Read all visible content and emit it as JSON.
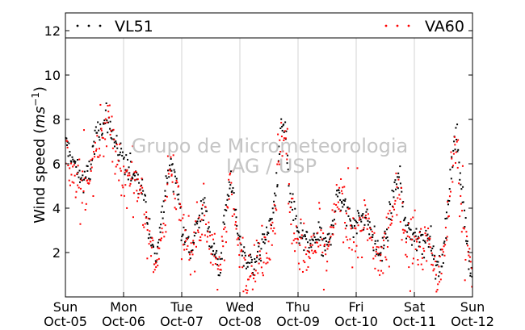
{
  "chart_data": {
    "type": "scatter",
    "title": "",
    "ylabel_main": "Wind speed (",
    "ylabel_unit": "ms",
    "ylabel_exp": "−1",
    "ylabel_close": ")",
    "xlabel": "",
    "ylim": [
      0,
      12.8
    ],
    "xlim": [
      0,
      7
    ],
    "yticks": [
      2,
      4,
      6,
      8,
      10,
      12
    ],
    "ytick_labels": [
      "2",
      "4",
      "6",
      "8",
      "10",
      "12"
    ],
    "xticks": [
      {
        "x": 0,
        "day": "Sun",
        "date": "Oct-05"
      },
      {
        "x": 1,
        "day": "Mon",
        "date": "Oct-06"
      },
      {
        "x": 2,
        "day": "Tue",
        "date": "Oct-07"
      },
      {
        "x": 3,
        "day": "Wed",
        "date": "Oct-08"
      },
      {
        "x": 4,
        "day": "Thu",
        "date": "Oct-09"
      },
      {
        "x": 5,
        "day": "Fri",
        "date": "Oct-10"
      },
      {
        "x": 6,
        "day": "Sat",
        "date": "Oct-11"
      },
      {
        "x": 7,
        "day": "Sun",
        "date": "Oct-12"
      }
    ],
    "grid": "vertical",
    "legend_placement": "top-band",
    "watermark": [
      "Grupo de Micrometeorologia",
      "IAG / USP"
    ],
    "series": [
      {
        "name": "VL51",
        "color": "#000000",
        "profile": [
          [
            0,
            7.0
          ],
          [
            0.15,
            6.0
          ],
          [
            0.3,
            5.2
          ],
          [
            0.4,
            5.5
          ],
          [
            0.55,
            7.5
          ],
          [
            0.7,
            8.0
          ],
          [
            0.8,
            7.5
          ],
          [
            0.9,
            6.5
          ],
          [
            1.0,
            6.0
          ],
          [
            1.2,
            5.6
          ],
          [
            1.35,
            4.8
          ],
          [
            1.45,
            2.8
          ],
          [
            1.55,
            1.5
          ],
          [
            1.7,
            4.5
          ],
          [
            1.8,
            6.0
          ],
          [
            1.9,
            5.5
          ],
          [
            2.0,
            3.2
          ],
          [
            2.15,
            2.0
          ],
          [
            2.3,
            3.5
          ],
          [
            2.4,
            4.2
          ],
          [
            2.5,
            2.5
          ],
          [
            2.65,
            1.2
          ],
          [
            2.75,
            3.8
          ],
          [
            2.85,
            5.5
          ],
          [
            2.95,
            3.0
          ],
          [
            3.1,
            1.6
          ],
          [
            3.25,
            1.6
          ],
          [
            3.4,
            2.4
          ],
          [
            3.55,
            3.5
          ],
          [
            3.65,
            5.5
          ],
          [
            3.7,
            7.5
          ],
          [
            3.78,
            7.8
          ],
          [
            3.85,
            4.5
          ],
          [
            4.0,
            3.0
          ],
          [
            4.2,
            2.2
          ],
          [
            4.35,
            3.0
          ],
          [
            4.45,
            2.0
          ],
          [
            4.55,
            2.8
          ],
          [
            4.7,
            4.8
          ],
          [
            4.8,
            4.0
          ],
          [
            4.9,
            3.5
          ],
          [
            5.0,
            3.3
          ],
          [
            5.15,
            3.8
          ],
          [
            5.25,
            3.0
          ],
          [
            5.35,
            2.2
          ],
          [
            5.45,
            2.0
          ],
          [
            5.55,
            3.2
          ],
          [
            5.65,
            4.8
          ],
          [
            5.75,
            5.5
          ],
          [
            5.85,
            3.0
          ],
          [
            6.0,
            2.8
          ],
          [
            6.15,
            2.5
          ],
          [
            6.25,
            3.0
          ],
          [
            6.35,
            1.5
          ],
          [
            6.45,
            1.3
          ],
          [
            6.55,
            3.2
          ],
          [
            6.65,
            6.5
          ],
          [
            6.72,
            7.5
          ],
          [
            6.78,
            5.5
          ],
          [
            6.85,
            4.2
          ],
          [
            6.92,
            2.2
          ],
          [
            7.0,
            0.6
          ]
        ],
        "spread": 0.45,
        "n_points": 620
      },
      {
        "name": "VA60",
        "color": "#ff0000",
        "profile": [
          [
            0,
            6.6
          ],
          [
            0.15,
            5.6
          ],
          [
            0.3,
            4.6
          ],
          [
            0.4,
            5.0
          ],
          [
            0.55,
            7.0
          ],
          [
            0.7,
            7.8
          ],
          [
            0.8,
            7.2
          ],
          [
            0.9,
            6.0
          ],
          [
            1.0,
            5.4
          ],
          [
            1.2,
            5.0
          ],
          [
            1.35,
            4.2
          ],
          [
            1.45,
            2.4
          ],
          [
            1.55,
            1.2
          ],
          [
            1.7,
            4.0
          ],
          [
            1.8,
            5.8
          ],
          [
            1.9,
            5.0
          ],
          [
            2.0,
            2.8
          ],
          [
            2.15,
            1.8
          ],
          [
            2.3,
            3.2
          ],
          [
            2.4,
            3.8
          ],
          [
            2.5,
            2.2
          ],
          [
            2.65,
            1.0
          ],
          [
            2.75,
            3.4
          ],
          [
            2.85,
            5.0
          ],
          [
            2.95,
            2.6
          ],
          [
            3.1,
            1.3
          ],
          [
            3.25,
            1.3
          ],
          [
            3.4,
            2.0
          ],
          [
            3.55,
            3.0
          ],
          [
            3.65,
            5.0
          ],
          [
            3.7,
            7.2
          ],
          [
            3.78,
            7.5
          ],
          [
            3.85,
            4.0
          ],
          [
            4.0,
            2.6
          ],
          [
            4.2,
            1.8
          ],
          [
            4.35,
            2.6
          ],
          [
            4.45,
            1.6
          ],
          [
            4.55,
            2.4
          ],
          [
            4.7,
            4.4
          ],
          [
            4.8,
            3.6
          ],
          [
            4.9,
            3.2
          ],
          [
            5.0,
            2.9
          ],
          [
            5.15,
            3.4
          ],
          [
            5.25,
            2.6
          ],
          [
            5.35,
            1.8
          ],
          [
            5.45,
            1.6
          ],
          [
            5.55,
            2.8
          ],
          [
            5.65,
            4.4
          ],
          [
            5.75,
            5.0
          ],
          [
            5.85,
            2.6
          ],
          [
            6.0,
            2.4
          ],
          [
            6.15,
            2.2
          ],
          [
            6.25,
            2.6
          ],
          [
            6.35,
            1.2
          ],
          [
            6.45,
            1.0
          ],
          [
            6.55,
            2.8
          ],
          [
            6.65,
            6.0
          ],
          [
            6.72,
            7.2
          ],
          [
            6.78,
            5.0
          ],
          [
            6.85,
            3.8
          ],
          [
            6.92,
            1.8
          ],
          [
            7.0,
            0.5
          ]
        ],
        "spread": 0.9,
        "n_points": 620
      }
    ]
  }
}
